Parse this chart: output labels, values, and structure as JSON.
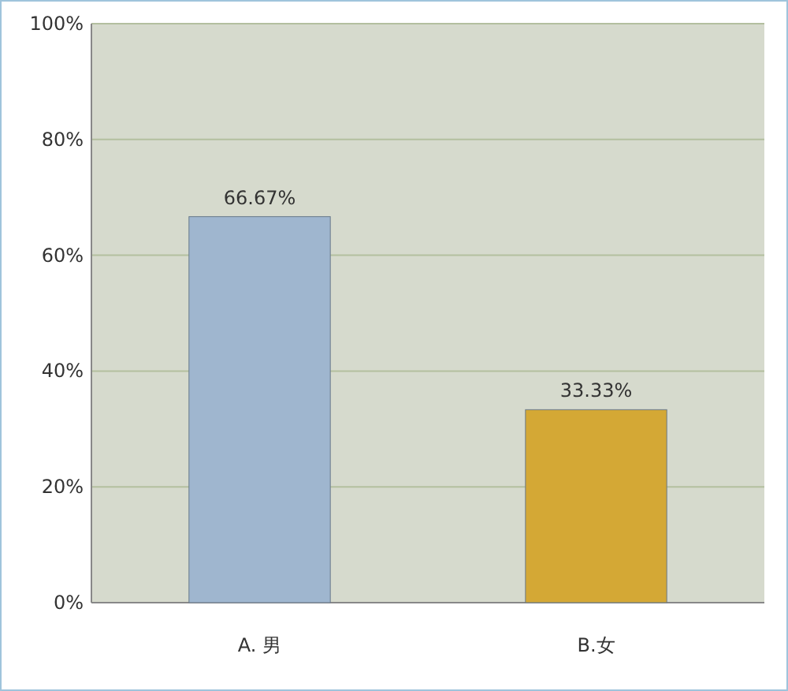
{
  "chart_data": {
    "type": "bar",
    "categories": [
      "A. 男",
      "B.女"
    ],
    "values": [
      66.67,
      33.33
    ],
    "colors": [
      "#9fb6cf",
      "#d4a835"
    ],
    "value_labels": [
      "66.67%",
      "33.33%"
    ],
    "ylim": [
      0,
      100
    ],
    "yticks": [
      {
        "value": 0,
        "label": "0%"
      },
      {
        "value": 20,
        "label": "20%"
      },
      {
        "value": 40,
        "label": "40%"
      },
      {
        "value": 60,
        "label": "60%"
      },
      {
        "value": 80,
        "label": "80%"
      },
      {
        "value": 100,
        "label": "100%"
      }
    ],
    "grid": "y"
  }
}
